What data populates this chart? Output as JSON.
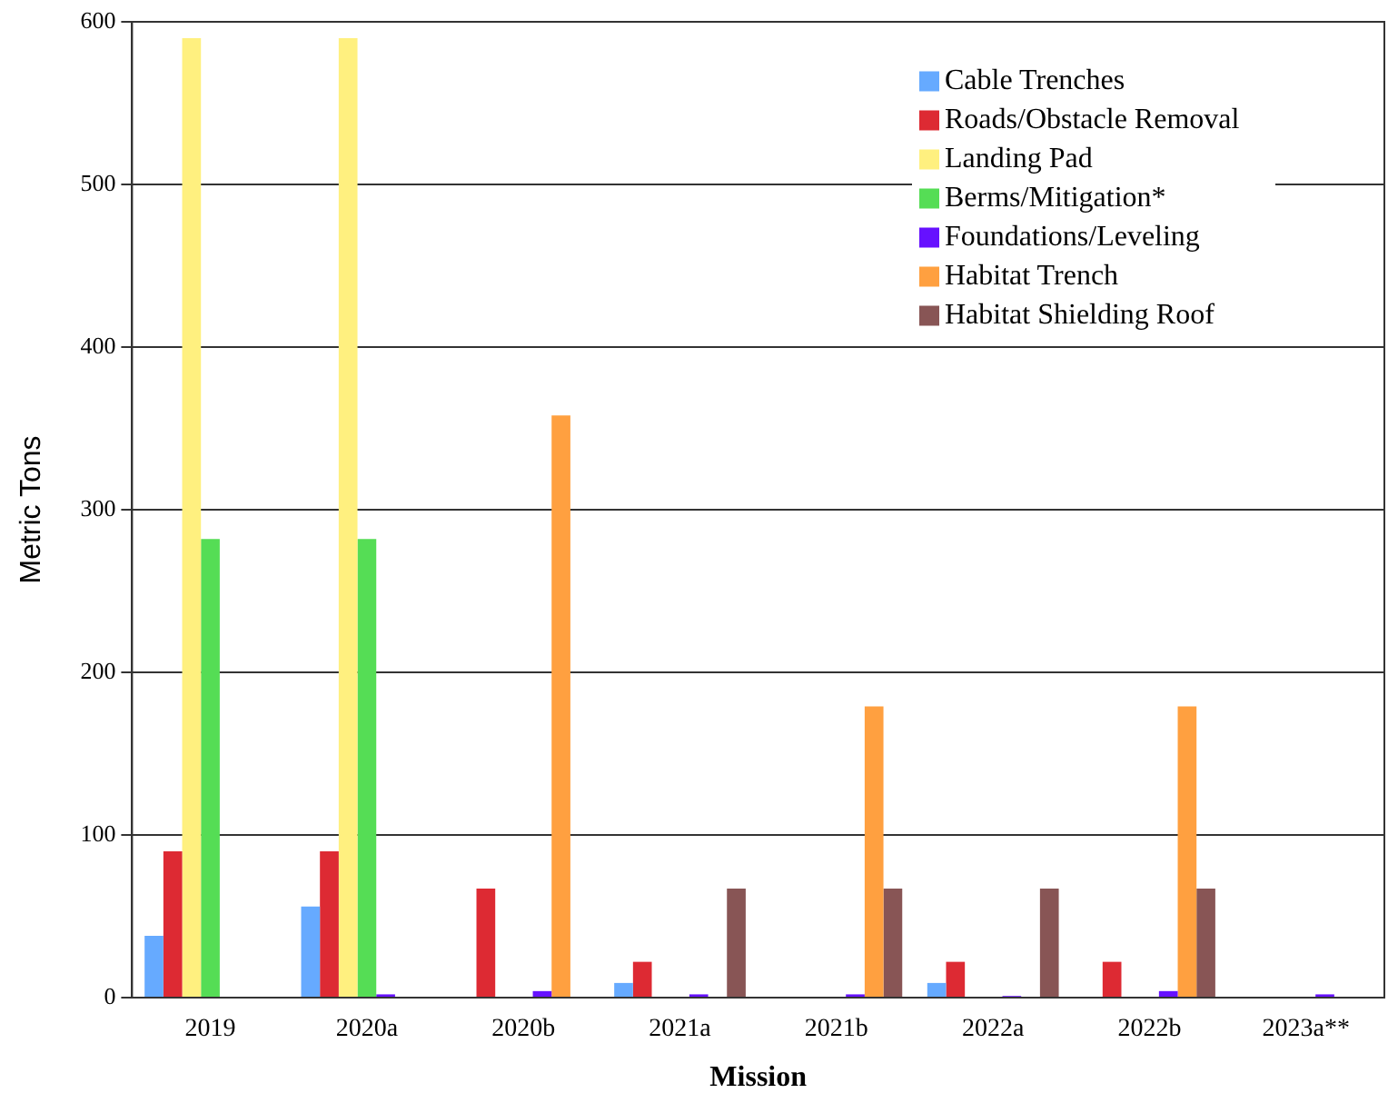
{
  "chart_data": {
    "type": "bar",
    "xlabel": "Mission",
    "ylabel": "Metric Tons",
    "categories": [
      "2019",
      "2020a",
      "2020b",
      "2021a",
      "2021b",
      "2022a",
      "2022b",
      "2023a**"
    ],
    "series": [
      {
        "name": "Cable Trenches",
        "color": "#66aaff",
        "values": [
          38,
          56,
          0,
          9,
          0,
          9,
          0,
          0
        ]
      },
      {
        "name": "Roads/Obstacle Removal",
        "color": "#dd2a33",
        "values": [
          90,
          90,
          67,
          22,
          0,
          22,
          22,
          0
        ]
      },
      {
        "name": "Landing Pad",
        "color": "#fff07f",
        "values": [
          590,
          590,
          0,
          0,
          0,
          0,
          0,
          0
        ]
      },
      {
        "name": "Berms/Mitigation*",
        "color": "#55dd55",
        "values": [
          282,
          282,
          0,
          0,
          0,
          0,
          0,
          0
        ]
      },
      {
        "name": "Foundations/Leveling",
        "color": "#6611ff",
        "values": [
          0,
          2,
          4,
          2,
          2,
          1,
          4,
          2
        ]
      },
      {
        "name": "Habitat Trench",
        "color": "#ffa040",
        "values": [
          0,
          0,
          358,
          0,
          179,
          0,
          179,
          0
        ]
      },
      {
        "name": "Habitat Shielding Roof",
        "color": "#885555",
        "values": [
          0,
          0,
          0,
          67,
          67,
          67,
          67,
          0
        ]
      }
    ],
    "ylim": [
      0,
      600
    ],
    "yticks": [
      0,
      100,
      200,
      300,
      400,
      500,
      600
    ],
    "grid": "y",
    "legend": "top right"
  }
}
